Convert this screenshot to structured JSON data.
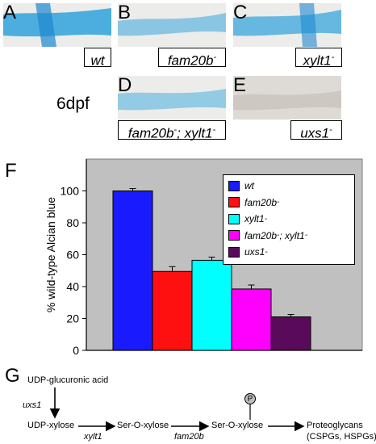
{
  "panels": [
    {
      "letter": "A",
      "genotype": "wt",
      "sup": ""
    },
    {
      "letter": "B",
      "genotype": "fam20b",
      "sup": "-"
    },
    {
      "letter": "C",
      "genotype": "xylt1",
      "sup": "-"
    },
    {
      "letter": "D",
      "genotype": "fam20b",
      "sup": "-",
      "genotype2": "; xylt1",
      "sup2": "-"
    },
    {
      "letter": "E",
      "genotype": "uxs1",
      "sup": "-"
    }
  ],
  "stage": "6dpf",
  "figure_letters": {
    "chart": "F",
    "pathway": "G"
  },
  "colors": {
    "wt": "#1a1aff",
    "fam20b": "#ff1010",
    "xylt1": "#00ffff",
    "double": "#ff00ff",
    "uxs1": "#5a0a5a",
    "plot_bg": "#c0c0c0",
    "stain": "#3aa7dd"
  },
  "chart_data": {
    "type": "bar",
    "categories": [
      "wt",
      "fam20b-",
      "xylt1-",
      "fam20b-; xylt1-",
      "uxs1-"
    ],
    "values": [
      100,
      49.5,
      56.5,
      38.5,
      21
    ],
    "errors": [
      1.5,
      3,
      2,
      2.5,
      1.5
    ],
    "ylabel": "% wild-type Alcian blue",
    "ylim": [
      0,
      120
    ],
    "yticks": [
      0,
      20,
      40,
      60,
      80,
      100
    ],
    "legend_position": "top-right",
    "legend": [
      {
        "label": "wt",
        "sup": "",
        "label2": "",
        "sup2": ""
      },
      {
        "label": "fam20b",
        "sup": "-",
        "label2": "",
        "sup2": ""
      },
      {
        "label": "xylt1",
        "sup": "-",
        "label2": "",
        "sup2": ""
      },
      {
        "label": "fam20b",
        "sup": "-",
        "label2": "; xylt1",
        "sup2": "-"
      },
      {
        "label": "uxs1",
        "sup": "-",
        "label2": "",
        "sup2": ""
      }
    ]
  },
  "pathway": {
    "top": "UDP-glucuronic acid",
    "enzyme_uxs1": "uxs1",
    "step1": "UDP-xylose",
    "enzyme_xylt1": "xylt1",
    "step2": "Ser-O-xylose",
    "enzyme_fam20b": "fam20b",
    "step3": "Ser-O-xylose",
    "phospho": "P",
    "product": "Proteoglycans",
    "product_sub": "(CSPGs, HSPGs)"
  }
}
